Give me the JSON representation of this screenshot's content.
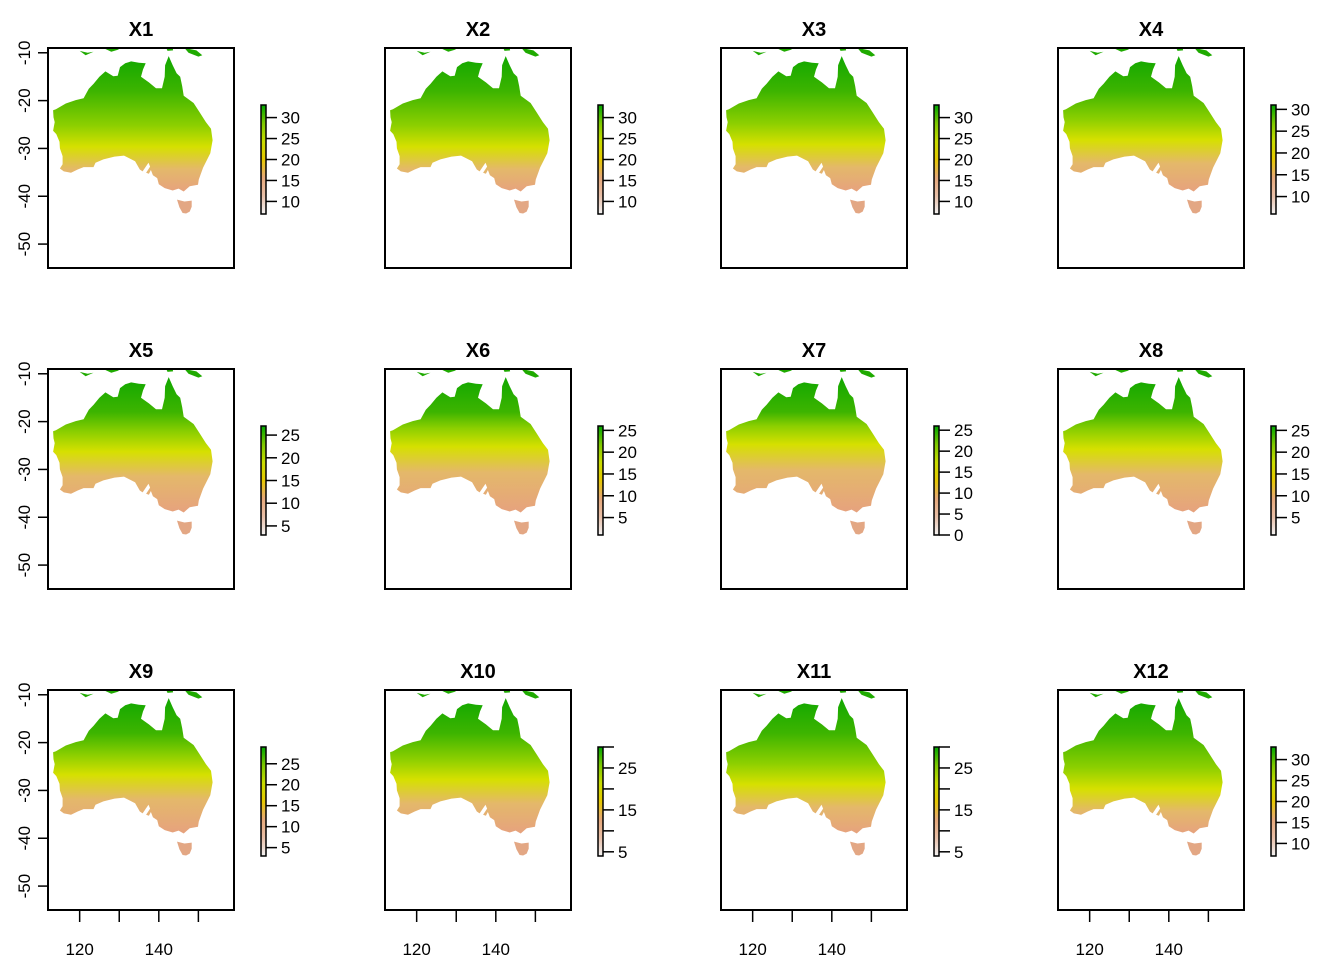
{
  "chart_data": {
    "type": "heatmap",
    "description": "Small multiples of raster maps over Australia (lon/lat grid), one panel per layer, each with its own continuous colorbar (terrain palette: pink-white low, yellow middle, green high)",
    "layout": {
      "rows": 3,
      "cols": 4
    },
    "x_axis": {
      "label": "",
      "range": [
        112,
        159
      ],
      "ticks": [
        120,
        130,
        140,
        150
      ],
      "tick_labels": [
        "120",
        "",
        "140",
        ""
      ],
      "shown_on_bottom_row": true
    },
    "y_axis": {
      "label": "",
      "range": [
        -55,
        -9
      ],
      "ticks": [
        -10,
        -20,
        -30,
        -40,
        -50
      ],
      "tick_labels": [
        "-10",
        "-20",
        "-30",
        "-40",
        "-50"
      ],
      "shown_on_left_column": true
    },
    "palette": [
      "#F2F2F2",
      "#E8BFA8",
      "#E6A87A",
      "#E6C800",
      "#C8DC00",
      "#7CC800",
      "#00A600"
    ],
    "panels": [
      {
        "title": "X1",
        "range": [
          7,
          33
        ],
        "ticks": [
          10,
          15,
          20,
          25,
          30
        ],
        "tick_labels": [
          "10",
          "15",
          "20",
          "25",
          "30"
        ],
        "south_fraction_cool": 0.15
      },
      {
        "title": "X2",
        "range": [
          7,
          33
        ],
        "ticks": [
          10,
          15,
          20,
          25,
          30
        ],
        "tick_labels": [
          "10",
          "15",
          "20",
          "25",
          "30"
        ],
        "south_fraction_cool": 0.15
      },
      {
        "title": "X3",
        "range": [
          7,
          33
        ],
        "ticks": [
          10,
          15,
          20,
          25,
          30
        ],
        "tick_labels": [
          "10",
          "15",
          "20",
          "25",
          "30"
        ],
        "south_fraction_cool": 0.2
      },
      {
        "title": "X4",
        "range": [
          6,
          31
        ],
        "ticks": [
          10,
          15,
          20,
          25,
          30
        ],
        "tick_labels": [
          "10",
          "15",
          "20",
          "25",
          "30"
        ],
        "south_fraction_cool": 0.3
      },
      {
        "title": "X5",
        "range": [
          3,
          27
        ],
        "ticks": [
          5,
          10,
          15,
          20,
          25
        ],
        "tick_labels": [
          "5",
          "10",
          "15",
          "20",
          "25"
        ],
        "south_fraction_cool": 0.5
      },
      {
        "title": "X6",
        "range": [
          1,
          26
        ],
        "ticks": [
          5,
          10,
          15,
          20,
          25
        ],
        "tick_labels": [
          "5",
          "10",
          "15",
          "20",
          "25"
        ],
        "south_fraction_cool": 0.6
      },
      {
        "title": "X7",
        "range": [
          0,
          26
        ],
        "ticks": [
          0,
          5,
          10,
          15,
          20,
          25
        ],
        "tick_labels": [
          "0",
          "5",
          "10",
          "15",
          "20",
          "25"
        ],
        "south_fraction_cool": 0.65
      },
      {
        "title": "X8",
        "range": [
          1,
          26
        ],
        "ticks": [
          5,
          10,
          15,
          20,
          25
        ],
        "tick_labels": [
          "5",
          "10",
          "15",
          "20",
          "25"
        ],
        "south_fraction_cool": 0.55
      },
      {
        "title": "X9",
        "range": [
          3,
          29
        ],
        "ticks": [
          5,
          10,
          15,
          20,
          25
        ],
        "tick_labels": [
          "5",
          "10",
          "15",
          "20",
          "25"
        ],
        "south_fraction_cool": 0.45
      },
      {
        "title": "X10",
        "range": [
          4,
          30
        ],
        "ticks": [
          5,
          10,
          15,
          20,
          25,
          30
        ],
        "tick_labels": [
          "5",
          "",
          "15",
          "",
          "25",
          ""
        ],
        "south_fraction_cool": 0.35
      },
      {
        "title": "X11",
        "range": [
          4,
          30
        ],
        "ticks": [
          5,
          10,
          15,
          20,
          25,
          30
        ],
        "tick_labels": [
          "5",
          "",
          "15",
          "",
          "25",
          ""
        ],
        "south_fraction_cool": 0.25
      },
      {
        "title": "X12",
        "range": [
          7,
          33
        ],
        "ticks": [
          10,
          15,
          20,
          25,
          30
        ],
        "tick_labels": [
          "10",
          "15",
          "20",
          "25",
          "30"
        ],
        "south_fraction_cool": 0.15
      }
    ]
  }
}
